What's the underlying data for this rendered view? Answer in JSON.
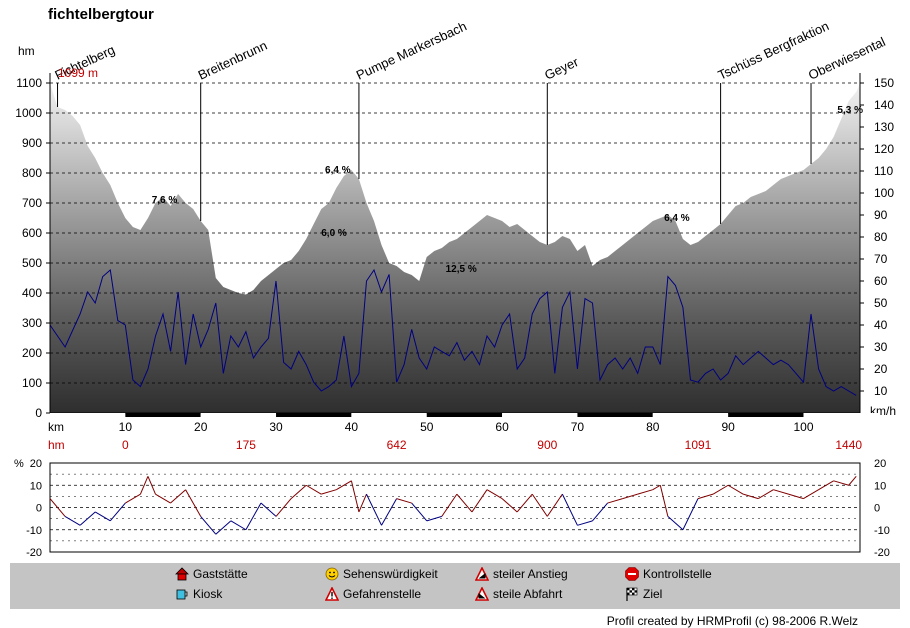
{
  "title": "fichtelbergtour",
  "chart_data": [
    {
      "type": "area",
      "title": "fichtelbergtour",
      "ylabel": "hm",
      "y2label": "km/h",
      "xlabel": "km",
      "xlim": [
        0,
        107.5
      ],
      "ylim": [
        0,
        1100
      ],
      "y2lim": [
        0,
        150
      ],
      "yticks": [
        0,
        100,
        200,
        300,
        400,
        500,
        600,
        700,
        800,
        900,
        1000,
        1100
      ],
      "y2ticks": [
        10,
        20,
        30,
        40,
        50,
        60,
        70,
        80,
        90,
        100,
        110,
        120,
        130,
        140,
        150
      ],
      "xticks": [
        10,
        20,
        30,
        40,
        50,
        60,
        70,
        80,
        90,
        100
      ],
      "grid": true,
      "start_label": "1099 m",
      "series": [
        {
          "kind": "elevation",
          "unit": "hm",
          "x": [
            0,
            1,
            2,
            3,
            4,
            5,
            6,
            7,
            8,
            9,
            10,
            11,
            12,
            13,
            14,
            15,
            16,
            17,
            18,
            19,
            20,
            21,
            22,
            23,
            24,
            25,
            26,
            27,
            28,
            29,
            30,
            31,
            32,
            33,
            34,
            35,
            36,
            37,
            38,
            39,
            40,
            41,
            42,
            43,
            44,
            45,
            46,
            47,
            48,
            49,
            50,
            51,
            52,
            53,
            54,
            55,
            56,
            57,
            58,
            59,
            60,
            61,
            62,
            63,
            64,
            65,
            66,
            67,
            68,
            69,
            70,
            71,
            72,
            73,
            74,
            75,
            76,
            77,
            78,
            79,
            80,
            81,
            82,
            83,
            84,
            85,
            86,
            87,
            88,
            89,
            90,
            91,
            92,
            93,
            94,
            95,
            96,
            97,
            98,
            99,
            100,
            101,
            102,
            103,
            104,
            105,
            106,
            107,
            107.5
          ],
          "values": [
            1099,
            1020,
            1010,
            990,
            960,
            890,
            850,
            800,
            760,
            700,
            650,
            620,
            610,
            650,
            700,
            720,
            690,
            730,
            700,
            680,
            640,
            610,
            450,
            420,
            410,
            400,
            395,
            410,
            440,
            460,
            480,
            500,
            510,
            540,
            580,
            630,
            680,
            700,
            750,
            790,
            810,
            780,
            700,
            640,
            560,
            500,
            490,
            470,
            460,
            440,
            520,
            540,
            550,
            570,
            580,
            600,
            620,
            640,
            660,
            650,
            640,
            620,
            630,
            610,
            590,
            570,
            560,
            570,
            590,
            580,
            540,
            560,
            490,
            510,
            520,
            540,
            560,
            580,
            600,
            620,
            640,
            650,
            660,
            640,
            580,
            560,
            570,
            590,
            610,
            630,
            660,
            690,
            700,
            720,
            730,
            740,
            760,
            780,
            790,
            800,
            810,
            830,
            850,
            880,
            920,
            980,
            1040,
            1070,
            1099
          ]
        },
        {
          "kind": "speed",
          "unit": "km/h",
          "x": [
            0,
            2,
            4,
            5,
            6,
            7,
            8,
            9,
            10,
            11,
            12,
            13,
            14,
            15,
            16,
            17,
            18,
            19,
            20,
            21,
            22,
            23,
            24,
            25,
            26,
            27,
            28,
            29,
            30,
            31,
            32,
            33,
            34,
            35,
            36,
            37,
            38,
            39,
            40,
            41,
            42,
            43,
            44,
            45,
            46,
            47,
            48,
            49,
            50,
            51,
            52,
            53,
            54,
            55,
            56,
            57,
            58,
            59,
            60,
            61,
            62,
            63,
            64,
            65,
            66,
            67,
            68,
            69,
            70,
            71,
            72,
            73,
            74,
            75,
            76,
            77,
            78,
            79,
            80,
            81,
            82,
            83,
            84,
            85,
            86,
            87,
            88,
            89,
            90,
            91,
            92,
            93,
            94,
            95,
            96,
            97,
            98,
            99,
            100,
            101,
            102,
            103,
            104,
            105,
            106,
            107
          ],
          "values": [
            40,
            30,
            45,
            55,
            50,
            62,
            65,
            42,
            40,
            15,
            12,
            20,
            35,
            45,
            28,
            55,
            22,
            45,
            30,
            38,
            50,
            18,
            35,
            30,
            37,
            25,
            30,
            34,
            60,
            23,
            20,
            28,
            22,
            14,
            10,
            12,
            15,
            35,
            12,
            18,
            60,
            65,
            55,
            63,
            14,
            22,
            38,
            25,
            20,
            30,
            28,
            26,
            32,
            24,
            28,
            22,
            35,
            30,
            40,
            45,
            20,
            25,
            45,
            52,
            55,
            18,
            48,
            55,
            20,
            52,
            50,
            15,
            22,
            25,
            20,
            25,
            18,
            30,
            30,
            22,
            62,
            58,
            48,
            15,
            14,
            18,
            20,
            15,
            18,
            26,
            22,
            25,
            28,
            25,
            22,
            24,
            22,
            18,
            14,
            45,
            20,
            12,
            10,
            12,
            10,
            8
          ]
        },
        {
          "kind": "gradient",
          "unit": "%",
          "ylim": [
            -20,
            20
          ],
          "yticks": [
            -20,
            -10,
            0,
            10,
            20
          ],
          "x": [
            0,
            2,
            4,
            6,
            8,
            10,
            12,
            13,
            14,
            16,
            18,
            20,
            22,
            24,
            26,
            28,
            30,
            32,
            34,
            36,
            38,
            40,
            41,
            42,
            44,
            46,
            48,
            50,
            52,
            54,
            56,
            58,
            60,
            62,
            64,
            66,
            68,
            70,
            72,
            74,
            76,
            78,
            80,
            81,
            82,
            84,
            86,
            88,
            90,
            92,
            94,
            96,
            98,
            100,
            102,
            104,
            106,
            107
          ],
          "values": [
            4,
            -4,
            -8,
            -2,
            -6,
            2,
            6,
            14,
            6,
            2,
            8,
            -4,
            -12,
            -6,
            -10,
            2,
            -4,
            4,
            10,
            6,
            8,
            12,
            -2,
            6,
            -8,
            4,
            2,
            -6,
            -4,
            6,
            -2,
            8,
            4,
            -2,
            6,
            -4,
            6,
            -8,
            -6,
            2,
            4,
            6,
            8,
            10,
            -4,
            -10,
            4,
            6,
            10,
            6,
            4,
            8,
            6,
            4,
            8,
            12,
            10,
            14
          ]
        }
      ],
      "annotations": [
        {
          "km": 1,
          "label": "Fichtelberg"
        },
        {
          "km": 20,
          "label": "Breitenbrunn"
        },
        {
          "km": 41,
          "label": "Pumpe Markersbach"
        },
        {
          "km": 66,
          "label": "Geyer"
        },
        {
          "km": 89,
          "label": "Tschüss Bergfraktion"
        },
        {
          "km": 101,
          "label": "Oberwiesental"
        }
      ],
      "gradient_labels": [
        {
          "km": 13.5,
          "hm": 700,
          "label": "7,6 %"
        },
        {
          "km": 36.5,
          "hm": 800,
          "label": "6,4 %"
        },
        {
          "km": 36,
          "hm": 590,
          "label": "6,0 %"
        },
        {
          "km": 52.5,
          "hm": 470,
          "label": "12,5 %"
        },
        {
          "km": 81.5,
          "hm": 640,
          "label": "6,4 %"
        },
        {
          "km": 104.5,
          "hm": 1000,
          "label": "5,3 %"
        }
      ],
      "cumulative_hm": [
        {
          "km": 10,
          "label": "0"
        },
        {
          "km": 26,
          "label": "175"
        },
        {
          "km": 46,
          "label": "642"
        },
        {
          "km": 66,
          "label": "900"
        },
        {
          "km": 86,
          "label": "1091"
        },
        {
          "km": 106,
          "label": "1440"
        }
      ],
      "hm_row_label": "hm",
      "gradient_axis_label": "%",
      "colors": {
        "speed": "#000080",
        "grad_pos": "#800000",
        "grad_neg": "#000080",
        "hm_labels": "#c00000"
      }
    }
  ],
  "legend": {
    "items": [
      {
        "icon": "house-icon",
        "label": "Gaststätte"
      },
      {
        "icon": "cup-icon",
        "label": "Kiosk"
      },
      {
        "icon": "smiley-icon",
        "label": "Sehenswürdigkeit"
      },
      {
        "icon": "warning-icon",
        "label": "Gefahrenstelle"
      },
      {
        "icon": "climb-icon",
        "label": "steiler Anstieg"
      },
      {
        "icon": "descent-icon",
        "label": "steile Abfahrt"
      },
      {
        "icon": "stop-icon",
        "label": "Kontrollstelle"
      },
      {
        "icon": "flag-icon",
        "label": "Ziel"
      }
    ]
  },
  "credit": "Profil created by HRMProfil (c) 98-2006 R.Welz"
}
